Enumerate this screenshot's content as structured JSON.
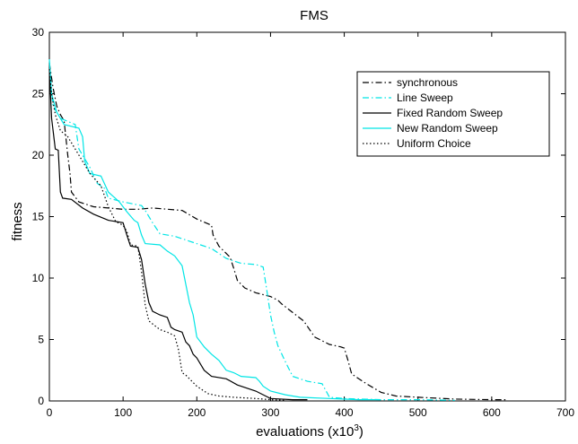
{
  "chart_data": {
    "type": "line",
    "title": "FMS",
    "xlabel": "evaluations (x10",
    "xlabel_sup": "3",
    "xlabel_end": ")",
    "ylabel": "fitness",
    "xlim": [
      0,
      700
    ],
    "ylim": [
      0,
      30
    ],
    "xticks": [
      0,
      100,
      200,
      300,
      400,
      500,
      600,
      700
    ],
    "yticks": [
      0,
      5,
      10,
      15,
      20,
      25,
      30
    ],
    "grid": false,
    "legend_position": "top-right",
    "series": [
      {
        "name": "synchronous",
        "color": "#000000",
        "dash": "dashdot",
        "points": [
          [
            0,
            27.5
          ],
          [
            5,
            25.5
          ],
          [
            10,
            24
          ],
          [
            15,
            23.3
          ],
          [
            20,
            22.8
          ],
          [
            25,
            20
          ],
          [
            28,
            18.5
          ],
          [
            30,
            17
          ],
          [
            40,
            16.2
          ],
          [
            60,
            15.8
          ],
          [
            80,
            15.7
          ],
          [
            100,
            15.6
          ],
          [
            120,
            15.6
          ],
          [
            140,
            15.7
          ],
          [
            180,
            15.5
          ],
          [
            200,
            14.8
          ],
          [
            220,
            14.3
          ],
          [
            222,
            13.5
          ],
          [
            230,
            12.6
          ],
          [
            240,
            12
          ],
          [
            245,
            11.7
          ],
          [
            250,
            10.8
          ],
          [
            255,
            9.8
          ],
          [
            265,
            9.2
          ],
          [
            280,
            8.8
          ],
          [
            300,
            8.5
          ],
          [
            310,
            8.2
          ],
          [
            315,
            7.9
          ],
          [
            330,
            7.2
          ],
          [
            345,
            6.5
          ],
          [
            360,
            5.2
          ],
          [
            380,
            4.6
          ],
          [
            395,
            4.4
          ],
          [
            400,
            4.3
          ],
          [
            405,
            3.3
          ],
          [
            410,
            2.2
          ],
          [
            430,
            1.4
          ],
          [
            450,
            0.7
          ],
          [
            470,
            0.4
          ],
          [
            500,
            0.3
          ],
          [
            550,
            0.15
          ],
          [
            600,
            0.1
          ],
          [
            620,
            0.1
          ]
        ]
      },
      {
        "name": "Line Sweep",
        "color": "#00e5e5",
        "dash": "dashdot",
        "points": [
          [
            0,
            27
          ],
          [
            5,
            24
          ],
          [
            15,
            23
          ],
          [
            35,
            22.5
          ],
          [
            40,
            20.5
          ],
          [
            45,
            20
          ],
          [
            55,
            19
          ],
          [
            65,
            17.7
          ],
          [
            75,
            17.3
          ],
          [
            80,
            16.5
          ],
          [
            100,
            16.2
          ],
          [
            125,
            15.9
          ],
          [
            130,
            15.5
          ],
          [
            140,
            14.5
          ],
          [
            150,
            13.6
          ],
          [
            170,
            13.4
          ],
          [
            190,
            13
          ],
          [
            220,
            12.4
          ],
          [
            240,
            11.6
          ],
          [
            260,
            11.2
          ],
          [
            280,
            11.1
          ],
          [
            290,
            10.9
          ],
          [
            295,
            9
          ],
          [
            300,
            7
          ],
          [
            305,
            5.6
          ],
          [
            310,
            4.5
          ],
          [
            320,
            3.2
          ],
          [
            330,
            2
          ],
          [
            340,
            1.8
          ],
          [
            350,
            1.6
          ],
          [
            370,
            1.4
          ],
          [
            380,
            0.3
          ],
          [
            400,
            0.2
          ],
          [
            450,
            0.1
          ],
          [
            500,
            0.1
          ],
          [
            550,
            0.05
          ]
        ]
      },
      {
        "name": "Fixed Random Sweep",
        "color": "#000000",
        "dash": "solid",
        "points": [
          [
            0,
            27
          ],
          [
            3,
            23
          ],
          [
            8,
            20.5
          ],
          [
            12,
            20.4
          ],
          [
            15,
            17
          ],
          [
            18,
            16.5
          ],
          [
            30,
            16.4
          ],
          [
            45,
            15.7
          ],
          [
            60,
            15.2
          ],
          [
            80,
            14.7
          ],
          [
            100,
            14.5
          ],
          [
            105,
            13.5
          ],
          [
            110,
            12.6
          ],
          [
            120,
            12.5
          ],
          [
            125,
            11.5
          ],
          [
            130,
            9.5
          ],
          [
            135,
            8
          ],
          [
            140,
            7.3
          ],
          [
            150,
            7
          ],
          [
            160,
            6.8
          ],
          [
            165,
            6
          ],
          [
            170,
            5.8
          ],
          [
            180,
            5.6
          ],
          [
            185,
            4.8
          ],
          [
            190,
            4.5
          ],
          [
            195,
            3.8
          ],
          [
            200,
            3.5
          ],
          [
            210,
            2.5
          ],
          [
            220,
            2
          ],
          [
            240,
            1.8
          ],
          [
            255,
            1.3
          ],
          [
            270,
            1
          ],
          [
            280,
            0.8
          ],
          [
            290,
            0.5
          ],
          [
            300,
            0.2
          ],
          [
            330,
            0.1
          ],
          [
            350,
            0.1
          ]
        ]
      },
      {
        "name": "New Random Sweep",
        "color": "#00e5e5",
        "dash": "solid",
        "points": [
          [
            0,
            27.8
          ],
          [
            3,
            25
          ],
          [
            10,
            23.5
          ],
          [
            20,
            22.5
          ],
          [
            40,
            22.2
          ],
          [
            45,
            21.5
          ],
          [
            48,
            19.5
          ],
          [
            55,
            18.5
          ],
          [
            70,
            18.3
          ],
          [
            80,
            17
          ],
          [
            95,
            16.2
          ],
          [
            105,
            15.4
          ],
          [
            115,
            14.7
          ],
          [
            120,
            14.5
          ],
          [
            125,
            13.5
          ],
          [
            130,
            12.8
          ],
          [
            150,
            12.7
          ],
          [
            160,
            12.2
          ],
          [
            170,
            11.8
          ],
          [
            180,
            11
          ],
          [
            185,
            9.5
          ],
          [
            190,
            8
          ],
          [
            195,
            7
          ],
          [
            200,
            5.2
          ],
          [
            210,
            4.4
          ],
          [
            220,
            3.8
          ],
          [
            230,
            3.3
          ],
          [
            240,
            2.5
          ],
          [
            250,
            2.3
          ],
          [
            260,
            2
          ],
          [
            280,
            1.9
          ],
          [
            285,
            1.6
          ],
          [
            290,
            1.2
          ],
          [
            300,
            0.8
          ],
          [
            320,
            0.5
          ],
          [
            340,
            0.3
          ],
          [
            380,
            0.2
          ],
          [
            420,
            0.1
          ],
          [
            450,
            0.1
          ]
        ]
      },
      {
        "name": "Uniform Choice",
        "color": "#000000",
        "dash": "dotted",
        "points": [
          [
            0,
            27
          ],
          [
            3,
            25
          ],
          [
            8,
            23.3
          ],
          [
            15,
            22
          ],
          [
            25,
            21.5
          ],
          [
            35,
            20.5
          ],
          [
            45,
            19.5
          ],
          [
            55,
            18.5
          ],
          [
            70,
            17.5
          ],
          [
            80,
            15.8
          ],
          [
            90,
            14.6
          ],
          [
            100,
            14.3
          ],
          [
            105,
            13.8
          ],
          [
            110,
            12.7
          ],
          [
            120,
            12.6
          ],
          [
            125,
            10.5
          ],
          [
            130,
            7.8
          ],
          [
            135,
            6.5
          ],
          [
            150,
            5.8
          ],
          [
            160,
            5.6
          ],
          [
            170,
            5.3
          ],
          [
            175,
            4.2
          ],
          [
            180,
            2.3
          ],
          [
            185,
            2.1
          ],
          [
            190,
            1.8
          ],
          [
            200,
            1.2
          ],
          [
            215,
            0.6
          ],
          [
            230,
            0.4
          ],
          [
            250,
            0.3
          ],
          [
            280,
            0.2
          ],
          [
            300,
            0.1
          ],
          [
            320,
            0.05
          ]
        ]
      }
    ]
  }
}
